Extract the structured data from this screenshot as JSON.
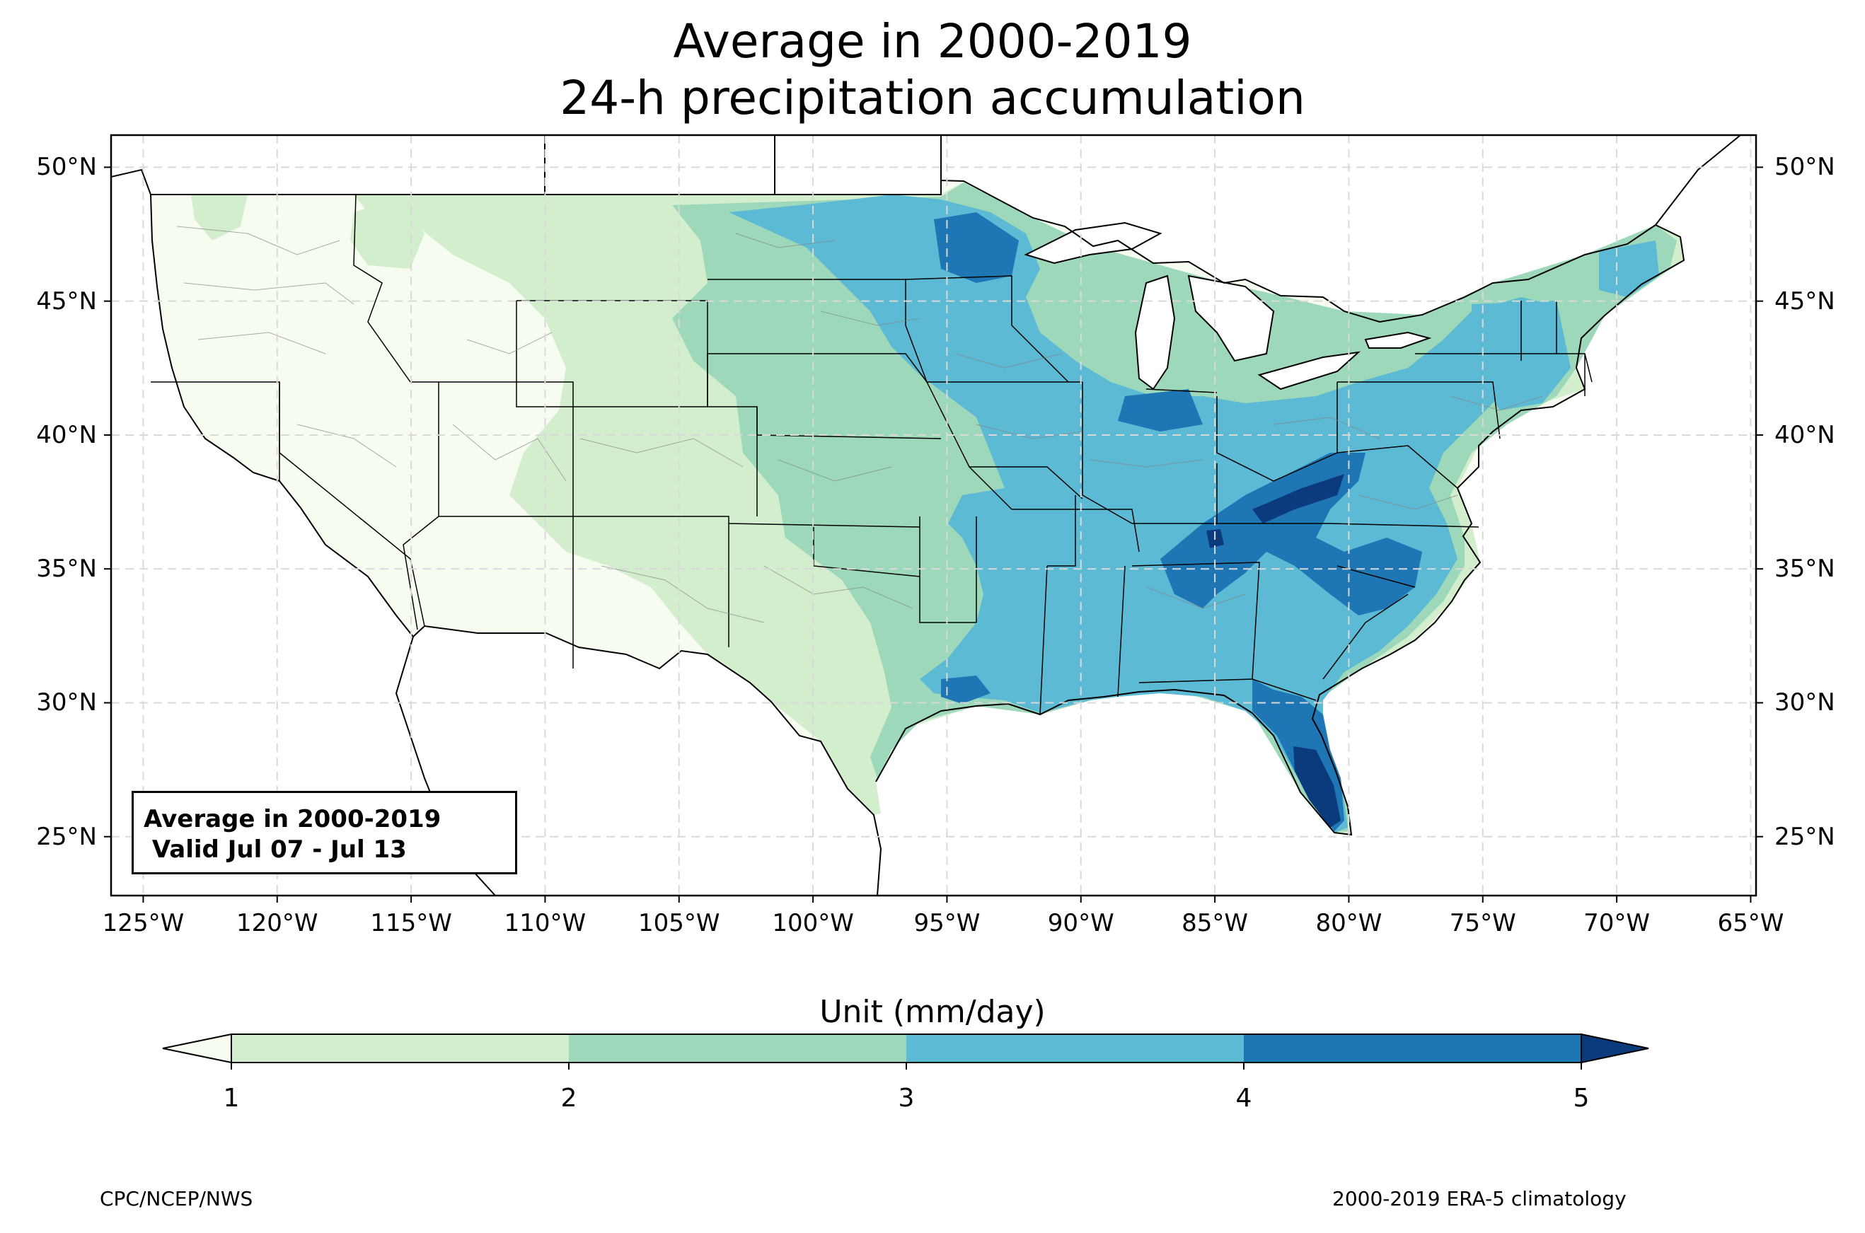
{
  "title": {
    "line1": "Average in 2000-2019",
    "line2": "24-h precipitation accumulation"
  },
  "map": {
    "lon_ticks": [
      "125°W",
      "120°W",
      "115°W",
      "110°W",
      "105°W",
      "100°W",
      "95°W",
      "90°W",
      "85°W",
      "80°W",
      "75°W",
      "70°W",
      "65°W"
    ],
    "lat_ticks": [
      "50°N",
      "45°N",
      "40°N",
      "35°N",
      "30°N",
      "25°N"
    ],
    "lon_range": [
      -126.2,
      -64.8
    ],
    "lat_range": [
      22.8,
      51.2
    ],
    "gridlines": true,
    "gridline_style": "dashed",
    "shading_colors": {
      "lt1": "#f7fcf0",
      "c1_2": "#d3eecd",
      "c2_3": "#9cd8b9",
      "c3_4": "#5cbad4",
      "c4_5": "#1f76b5",
      "gt5": "#0b3b7c"
    }
  },
  "info_box": {
    "line1": "Average in 2000-2019",
    "line2": " Valid Jul 07 - Jul 13"
  },
  "colorbar": {
    "title": "Unit (mm/day)",
    "ticks": [
      "1",
      "2",
      "3",
      "4",
      "5"
    ],
    "colors": [
      "#d3eecd",
      "#9cd8b9",
      "#5cbad4",
      "#1f76b5"
    ],
    "under_color": "#f7fcf0",
    "over_color": "#0b3b7c",
    "extend": "both"
  },
  "footer": {
    "left": "CPC/NCEP/NWS",
    "right": "2000-2019 ERA-5 climatology"
  }
}
